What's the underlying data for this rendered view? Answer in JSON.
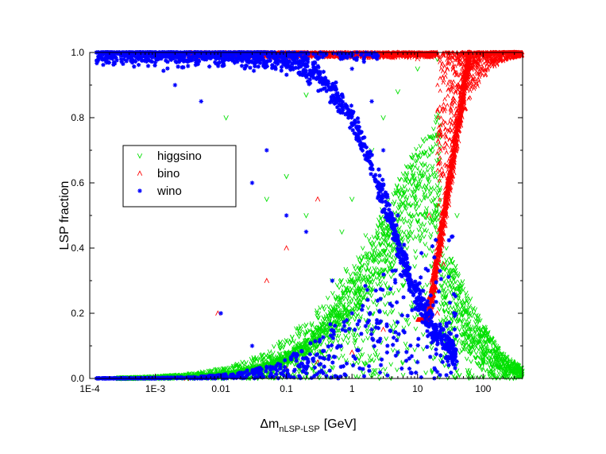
{
  "chart_data": {
    "type": "scatter",
    "title": "",
    "xlabel": "Δm",
    "xlabel_sub": "nLSP-LSP",
    "xlabel_unit": "[GeV]",
    "ylabel": "LSP fraction",
    "x_scale": "log",
    "xlim": [
      0.0001,
      400
    ],
    "ylim": [
      0.0,
      1.0
    ],
    "x_ticks": [
      {
        "value": 0.0001,
        "label": "1E-4"
      },
      {
        "value": 0.001,
        "label": "1E-3"
      },
      {
        "value": 0.01,
        "label": "0.01"
      },
      {
        "value": 0.1,
        "label": "0.1"
      },
      {
        "value": 1,
        "label": "1"
      },
      {
        "value": 10,
        "label": "10"
      },
      {
        "value": 100,
        "label": "100"
      }
    ],
    "y_ticks": [
      {
        "value": 0.0,
        "label": "0.0"
      },
      {
        "value": 0.2,
        "label": "0.2"
      },
      {
        "value": 0.4,
        "label": "0.4"
      },
      {
        "value": 0.6,
        "label": "0.6"
      },
      {
        "value": 0.8,
        "label": "0.8"
      },
      {
        "value": 1.0,
        "label": "1.0"
      }
    ],
    "grid": false,
    "legend_position": "left-middle",
    "series": [
      {
        "name": "higgsino",
        "color": "#00e000",
        "marker": "tri-down",
        "points": [
          [
            0.0003,
            0.0
          ],
          [
            0.001,
            0.005
          ],
          [
            0.003,
            0.01
          ],
          [
            0.01,
            0.02
          ],
          [
            0.03,
            0.04
          ],
          [
            0.1,
            0.08
          ],
          [
            0.3,
            0.15
          ],
          [
            0.5,
            0.3
          ],
          [
            0.7,
            0.45
          ],
          [
            1,
            0.55
          ],
          [
            2,
            0.7
          ],
          [
            3,
            0.8
          ],
          [
            5,
            0.88
          ],
          [
            10,
            0.95
          ],
          [
            20,
            0.98
          ],
          [
            40,
            0.5
          ],
          [
            60,
            0.2
          ],
          [
            100,
            0.05
          ],
          [
            200,
            0.01
          ],
          [
            0.05,
            0.55
          ],
          [
            0.1,
            0.62
          ],
          [
            0.2,
            0.5
          ],
          [
            0.012,
            0.8
          ],
          [
            0.2,
            0.87
          ],
          [
            15,
            0.4
          ],
          [
            30,
            0.3
          ]
        ]
      },
      {
        "name": "bino",
        "color": "#ff0000",
        "marker": "tri-up",
        "points": [
          [
            0.003,
            0.0
          ],
          [
            0.02,
            0.01
          ],
          [
            0.1,
            0.03
          ],
          [
            0.3,
            0.05
          ],
          [
            1,
            0.08
          ],
          [
            3,
            0.15
          ],
          [
            8,
            0.3
          ],
          [
            15,
            0.5
          ],
          [
            20,
            0.2
          ],
          [
            25,
            0.35
          ],
          [
            30,
            0.6
          ],
          [
            40,
            0.8
          ],
          [
            60,
            0.9
          ],
          [
            100,
            0.95
          ],
          [
            200,
            0.99
          ],
          [
            300,
            1.0
          ],
          [
            10,
            0.98
          ],
          [
            20,
            0.99
          ],
          [
            5,
            1.0
          ],
          [
            0.009,
            0.2
          ],
          [
            0.05,
            0.3
          ],
          [
            0.1,
            0.4
          ],
          [
            0.3,
            0.55
          ]
        ]
      },
      {
        "name": "wino",
        "color": "#0000ff",
        "marker": "star",
        "points": [
          [
            0.00015,
            0.99
          ],
          [
            0.0003,
            0.98
          ],
          [
            0.001,
            0.97
          ],
          [
            0.002,
            0.9
          ],
          [
            0.005,
            0.85
          ],
          [
            0.01,
            0.7
          ],
          [
            0.03,
            0.6
          ],
          [
            0.05,
            0.7
          ],
          [
            0.1,
            0.5
          ],
          [
            0.2,
            0.45
          ],
          [
            0.5,
            0.3
          ],
          [
            1,
            0.2
          ],
          [
            2,
            0.15
          ],
          [
            5,
            0.08
          ],
          [
            10,
            0.05
          ],
          [
            20,
            0.02
          ],
          [
            0.3,
            0.98
          ],
          [
            1,
            0.95
          ],
          [
            2,
            0.85
          ],
          [
            3,
            0.7
          ],
          [
            5,
            0.5
          ],
          [
            8,
            0.3
          ],
          [
            0.01,
            0.2
          ],
          [
            0.03,
            0.1
          ]
        ]
      }
    ]
  }
}
